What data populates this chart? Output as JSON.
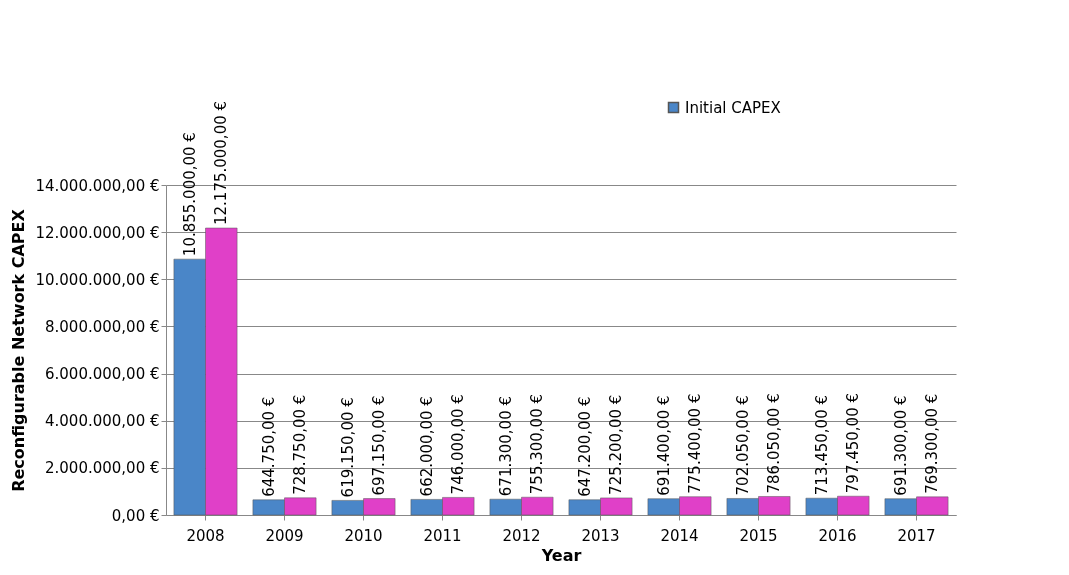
{
  "chart_data": {
    "type": "bar",
    "xlabel": "Year",
    "ylabel": "Reconfigurable Network CAPEX",
    "categories": [
      "2008",
      "2009",
      "2010",
      "2011",
      "2012",
      "2013",
      "2014",
      "2015",
      "2016",
      "2017"
    ],
    "series": [
      {
        "name": "Initial CAPEX",
        "color": "#4a86c8",
        "values": [
          10855000,
          644750,
          619150,
          662000,
          671300,
          647200,
          691400,
          702050,
          713450,
          691300
        ],
        "value_labels": [
          "10.855.000,00 €",
          "644.750,00 €",
          "619.150,00 €",
          "662.000,00 €",
          "671.300,00 €",
          "647.200,00 €",
          "691.400,00 €",
          "702.050,00 €",
          "713.450,00 €",
          "691.300,00 €"
        ]
      },
      {
        "color": "#e040c8",
        "values": [
          12175000,
          728750,
          697150,
          746000,
          755300,
          725200,
          775400,
          786050,
          797450,
          769300
        ],
        "value_labels": [
          "12.175.000,00 €",
          "728.750,00 €",
          "697.150,00 €",
          "746.000,00 €",
          "755.300,00 €",
          "725.200,00 €",
          "775.400,00 €",
          "786.050,00 €",
          "797.450,00 €",
          "769.300,00 €"
        ]
      }
    ],
    "ylim": [
      0,
      14000000
    ],
    "yticks": [
      {
        "value": 0,
        "label": "0,00 €"
      },
      {
        "value": 2000000,
        "label": "2.000.000,00 €"
      },
      {
        "value": 4000000,
        "label": "4.000.000,00 €"
      },
      {
        "value": 6000000,
        "label": "6.000.000,00 €"
      },
      {
        "value": 8000000,
        "label": "8.000.000,00 €"
      },
      {
        "value": 10000000,
        "label": "10.000.000,00 €"
      },
      {
        "value": 12000000,
        "label": "12.000.000,00 €"
      },
      {
        "value": 14000000,
        "label": "14.000.000,00 €"
      }
    ],
    "grid": "y",
    "legend": "top right"
  }
}
